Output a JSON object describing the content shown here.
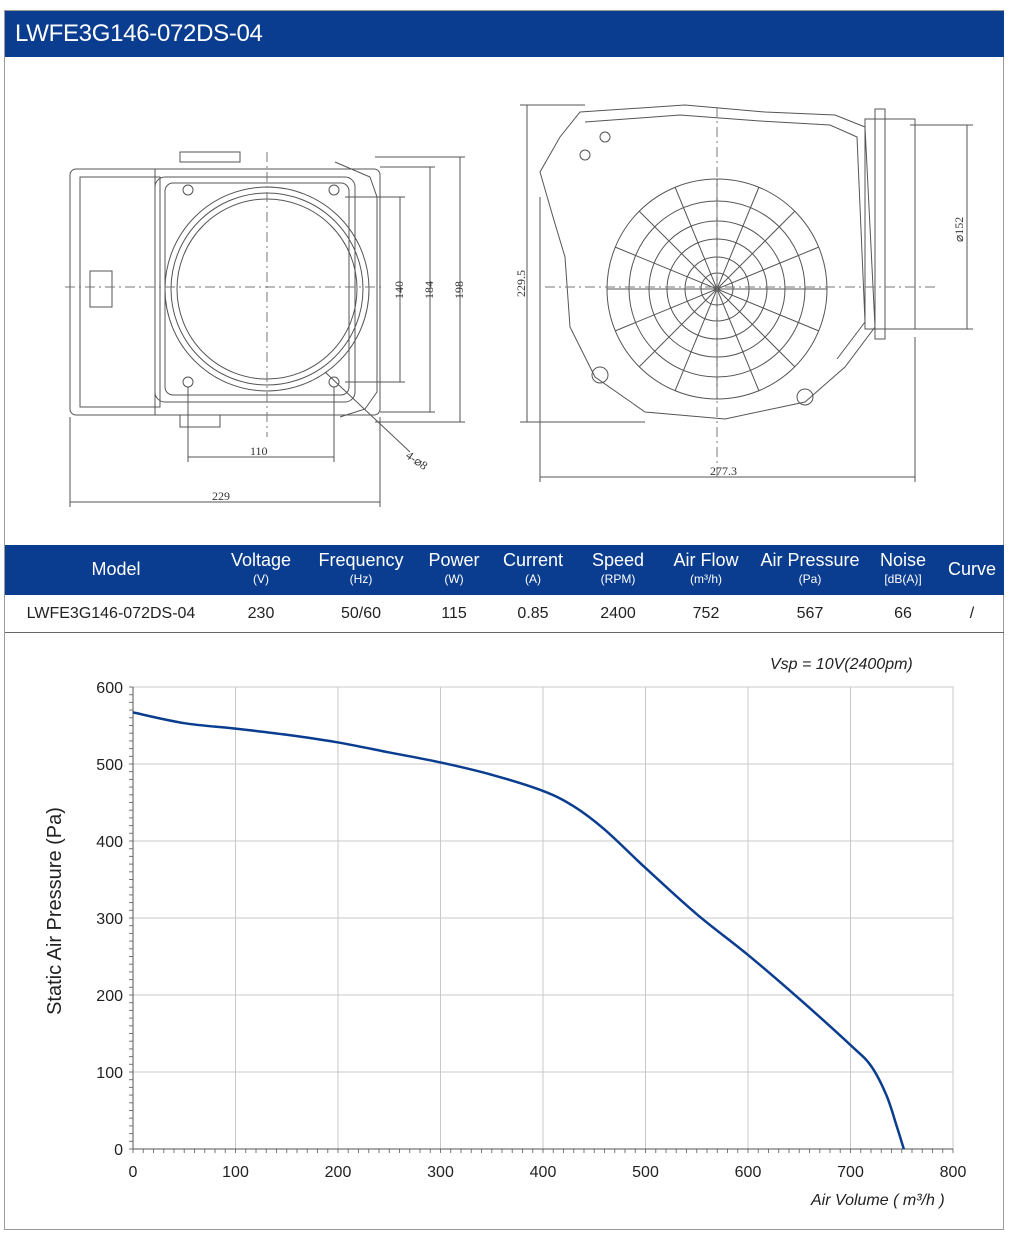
{
  "header": {
    "title": "LWFE3G146-072DS-04"
  },
  "drawing": {
    "dimensions": [
      "110",
      "229",
      "140",
      "184",
      "198",
      "4-⌀8",
      "229.5",
      "277.3",
      "⌀152"
    ]
  },
  "spec_table": {
    "columns": [
      {
        "label": "Model",
        "unit": ""
      },
      {
        "label": "Voltage",
        "unit": "(V)"
      },
      {
        "label": "Frequency",
        "unit": "(Hz)"
      },
      {
        "label": "Power",
        "unit": "(W)"
      },
      {
        "label": "Current",
        "unit": "(A)"
      },
      {
        "label": "Speed",
        "unit": "(RPM)"
      },
      {
        "label": "Air Flow",
        "unit": "(m³/h)"
      },
      {
        "label": "Air Pressure",
        "unit": "(Pa)"
      },
      {
        "label": "Noise",
        "unit": "[dB(A)]"
      },
      {
        "label": "Curve",
        "unit": ""
      }
    ],
    "row": [
      "LWFE3G146-072DS-04",
      "230",
      "50/60",
      "115",
      "0.85",
      "2400",
      "752",
      "567",
      "66",
      "/"
    ]
  },
  "colors": {
    "brand": "#0a3d8f",
    "curve": "#0a3d8f",
    "grid": "#c8c8c8"
  },
  "chart_data": {
    "type": "line",
    "annotation": "Vsp = 10V(2400pm)",
    "xlabel": "Air Volume ( m³/h )",
    "ylabel": "Static Air Pressure  (Pa)",
    "xlim": [
      0,
      800
    ],
    "ylim": [
      0,
      600
    ],
    "xticks": [
      0,
      100,
      200,
      300,
      400,
      500,
      600,
      700,
      800
    ],
    "yticks": [
      0,
      100,
      200,
      300,
      400,
      500,
      600
    ],
    "grid": true,
    "series": [
      {
        "x": [
          0,
          50,
          100,
          150,
          200,
          250,
          300,
          350,
          400,
          430,
          460,
          500,
          550,
          600,
          650,
          700,
          720,
          735,
          745,
          752
        ],
        "y": [
          567,
          553,
          546,
          538,
          528,
          515,
          502,
          486,
          465,
          445,
          415,
          365,
          305,
          252,
          195,
          135,
          108,
          70,
          30,
          0
        ]
      }
    ]
  }
}
